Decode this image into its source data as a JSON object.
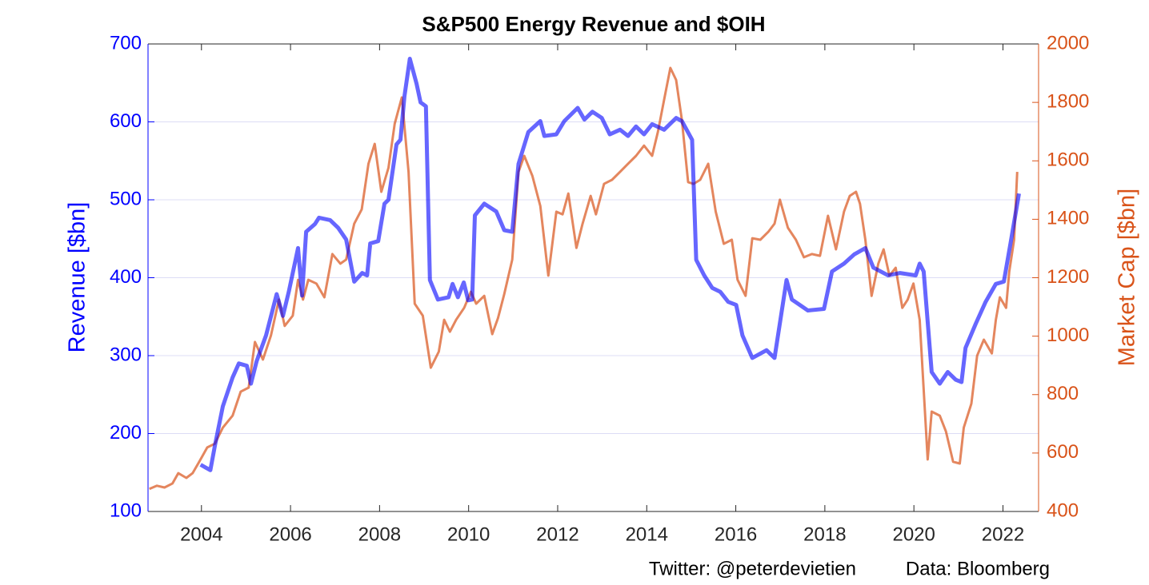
{
  "chart_data": {
    "type": "line",
    "title": "S&P500 Energy Revenue and $OIH",
    "ylabel": "Revenue [$bn]",
    "y2label": "Market Cap [$bn]",
    "annotations": [
      "Twitter: @peterdevietien",
      "Data: Bloomberg"
    ],
    "xlim": [
      2002.8,
      2022.8
    ],
    "xticks": [
      2004,
      2006,
      2008,
      2010,
      2012,
      2014,
      2016,
      2018,
      2020,
      2022
    ],
    "ylim": [
      100,
      700
    ],
    "yticks": [
      100,
      200,
      300,
      400,
      500,
      600,
      700
    ],
    "y2lim": [
      400,
      2000
    ],
    "y2ticks": [
      400,
      600,
      800,
      1000,
      1200,
      1400,
      1600,
      1800,
      2000
    ],
    "ycolor": "#0000ff",
    "y2color": "#d95319",
    "grid": true,
    "series": [
      {
        "name": "Revenue",
        "color": "#0000ff",
        "axis": "y",
        "x": [
          2003.98,
          2004.2,
          2004.3,
          2004.48,
          2004.7,
          2004.84,
          2005.02,
          2005.11,
          2005.24,
          2005.45,
          2005.69,
          2005.83,
          2005.96,
          2006.17,
          2006.26,
          2006.35,
          2006.55,
          2006.64,
          2006.89,
          2007.07,
          2007.25,
          2007.43,
          2007.61,
          2007.72,
          2007.79,
          2007.97,
          2008.11,
          2008.2,
          2008.38,
          2008.47,
          2008.56,
          2008.68,
          2008.83,
          2008.92,
          2009.04,
          2009.13,
          2009.31,
          2009.55,
          2009.64,
          2009.76,
          2009.89,
          2009.99,
          2010.08,
          2010.14,
          2010.35,
          2010.62,
          2010.8,
          2010.98,
          2011.12,
          2011.34,
          2011.61,
          2011.7,
          2011.97,
          2012.15,
          2012.45,
          2012.6,
          2012.78,
          2012.99,
          2013.17,
          2013.4,
          2013.58,
          2013.76,
          2013.94,
          2014.12,
          2014.39,
          2014.66,
          2014.79,
          2015.02,
          2015.11,
          2015.29,
          2015.47,
          2015.65,
          2015.83,
          2016.01,
          2016.15,
          2016.37,
          2016.69,
          2016.87,
          2017.14,
          2017.26,
          2017.62,
          2017.98,
          2018.16,
          2018.43,
          2018.66,
          2018.91,
          2019.09,
          2019.42,
          2019.69,
          2020.04,
          2020.13,
          2020.22,
          2020.4,
          2020.58,
          2020.76,
          2020.94,
          2021.07,
          2021.16,
          2021.39,
          2021.61,
          2021.84,
          2022.02,
          2022.17,
          2022.36
        ],
        "values": [
          160,
          153,
          184,
          235,
          272,
          290,
          287,
          264,
          293,
          326,
          379,
          351,
          382,
          438,
          377,
          459,
          469,
          477,
          474,
          464,
          449,
          395,
          406,
          403,
          444,
          447,
          495,
          500,
          571,
          577,
          633,
          681,
          649,
          625,
          620,
          397,
          372,
          375,
          392,
          375,
          394,
          371,
          372,
          480,
          495,
          485,
          461,
          459,
          546,
          587,
          601,
          582,
          584,
          601,
          618,
          603,
          613,
          605,
          584,
          590,
          582,
          594,
          584,
          597,
          590,
          605,
          601,
          577,
          423,
          403,
          387,
          382,
          369,
          365,
          326,
          297,
          307,
          297,
          397,
          372,
          358,
          360,
          408,
          418,
          430,
          438,
          413,
          403,
          406,
          403,
          418,
          408,
          279,
          264,
          279,
          269,
          266,
          310,
          341,
          369,
          392,
          395,
          444,
          508
        ]
      },
      {
        "name": "Market Cap",
        "color": "#d95319",
        "axis": "y2",
        "x": [
          2002.83,
          2003.0,
          2003.17,
          2003.35,
          2003.48,
          2003.66,
          2003.8,
          2003.95,
          2004.13,
          2004.3,
          2004.48,
          2004.7,
          2004.88,
          2005.06,
          2005.2,
          2005.38,
          2005.56,
          2005.74,
          2005.87,
          2006.05,
          2006.17,
          2006.28,
          2006.4,
          2006.58,
          2006.76,
          2006.94,
          2007.12,
          2007.25,
          2007.43,
          2007.6,
          2007.75,
          2007.89,
          2008.04,
          2008.2,
          2008.34,
          2008.5,
          2008.65,
          2008.79,
          2008.97,
          2009.15,
          2009.33,
          2009.45,
          2009.58,
          2009.72,
          2009.9,
          2010.05,
          2010.17,
          2010.35,
          2010.53,
          2010.66,
          2010.8,
          2010.98,
          2011.12,
          2011.25,
          2011.43,
          2011.61,
          2011.79,
          2011.97,
          2012.11,
          2012.24,
          2012.42,
          2012.56,
          2012.74,
          2012.86,
          2013.04,
          2013.22,
          2013.4,
          2013.58,
          2013.76,
          2013.94,
          2014.12,
          2014.25,
          2014.39,
          2014.53,
          2014.66,
          2014.79,
          2014.93,
          2015.05,
          2015.2,
          2015.38,
          2015.55,
          2015.73,
          2015.91,
          2016.04,
          2016.22,
          2016.37,
          2016.55,
          2016.73,
          2016.87,
          2016.99,
          2017.17,
          2017.35,
          2017.53,
          2017.71,
          2017.89,
          2018.07,
          2018.25,
          2018.43,
          2018.56,
          2018.7,
          2018.79,
          2018.91,
          2019.05,
          2019.2,
          2019.32,
          2019.45,
          2019.59,
          2019.74,
          2019.86,
          2019.99,
          2020.13,
          2020.31,
          2020.4,
          2020.58,
          2020.72,
          2020.88,
          2021.03,
          2021.12,
          2021.29,
          2021.42,
          2021.57,
          2021.75,
          2021.84,
          2021.93,
          2022.07,
          2022.14,
          2022.25,
          2022.32
        ],
        "values": [
          477,
          488,
          482,
          496,
          531,
          515,
          531,
          570,
          619,
          632,
          687,
          728,
          810,
          824,
          980,
          920,
          1002,
          1125,
          1035,
          1070,
          1193,
          1125,
          1193,
          1180,
          1133,
          1281,
          1248,
          1262,
          1385,
          1434,
          1590,
          1658,
          1494,
          1576,
          1727,
          1817,
          1562,
          1111,
          1070,
          892,
          947,
          1056,
          1015,
          1056,
          1097,
          1152,
          1111,
          1138,
          1007,
          1062,
          1144,
          1262,
          1562,
          1617,
          1549,
          1445,
          1207,
          1426,
          1417,
          1488,
          1302,
          1385,
          1480,
          1417,
          1521,
          1535,
          1562,
          1590,
          1617,
          1652,
          1617,
          1699,
          1809,
          1918,
          1877,
          1740,
          1527,
          1521,
          1535,
          1590,
          1426,
          1316,
          1330,
          1193,
          1138,
          1335,
          1330,
          1357,
          1385,
          1467,
          1371,
          1330,
          1270,
          1281,
          1275,
          1412,
          1297,
          1426,
          1480,
          1494,
          1453,
          1330,
          1138,
          1248,
          1297,
          1207,
          1234,
          1097,
          1125,
          1180,
          1056,
          578,
          742,
          728,
          674,
          570,
          564,
          687,
          769,
          933,
          988,
          941,
          1056,
          1133,
          1097,
          1220,
          1330,
          1562
        ]
      }
    ]
  }
}
